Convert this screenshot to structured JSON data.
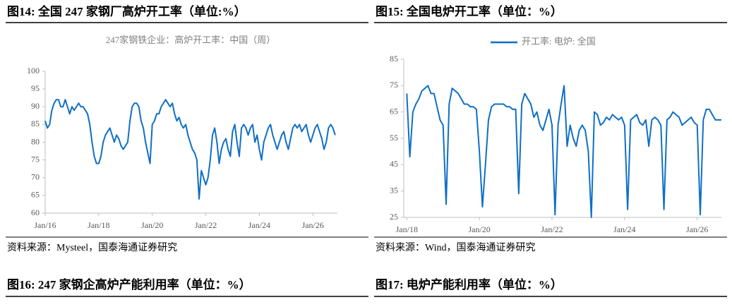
{
  "figures": [
    {
      "caption": "图14:  全国 247 家钢厂高炉开工率（单位:%）",
      "source": "资料来源：Mysteel，国泰海通证券研究"
    },
    {
      "caption": "图15:  全国电炉开工率（单位：%）",
      "source": "资料来源：Wind，国泰海通证券研究"
    }
  ],
  "next_captions": [
    "图16:  247 家钢企高炉产能利用率（单位：%）",
    "图17:  电炉产能利用率（单位：%）"
  ],
  "chart_data": [
    {
      "type": "line",
      "title": "247家钢铁企业：高炉开工率：中国（周）",
      "color": "#0f6fc6",
      "x": [
        "2016-01",
        "2016-02",
        "2016-03",
        "2016-04",
        "2016-05",
        "2016-06",
        "2016-07",
        "2016-08",
        "2016-09",
        "2016-10",
        "2016-11",
        "2016-12",
        "2017-01",
        "2017-02",
        "2017-03",
        "2017-04",
        "2017-05",
        "2017-06",
        "2017-07",
        "2017-08",
        "2017-09",
        "2017-10",
        "2017-11",
        "2017-12",
        "2018-01",
        "2018-02",
        "2018-03",
        "2018-04",
        "2018-05",
        "2018-06",
        "2018-07",
        "2018-08",
        "2018-09",
        "2018-10",
        "2018-11",
        "2018-12",
        "2019-01",
        "2019-02",
        "2019-03",
        "2019-04",
        "2019-05",
        "2019-06",
        "2019-07",
        "2019-08",
        "2019-09",
        "2019-10",
        "2019-11",
        "2019-12",
        "2020-01",
        "2020-02",
        "2020-03",
        "2020-04",
        "2020-05",
        "2020-06",
        "2020-07",
        "2020-08",
        "2020-09",
        "2020-10",
        "2020-11",
        "2020-12",
        "2021-01",
        "2021-02",
        "2021-03",
        "2021-04",
        "2021-05",
        "2021-06",
        "2021-07",
        "2021-08",
        "2021-09",
        "2021-10",
        "2021-11",
        "2021-12",
        "2022-01",
        "2022-02",
        "2022-03",
        "2022-04",
        "2022-05",
        "2022-06",
        "2022-07",
        "2022-08",
        "2022-09",
        "2022-10",
        "2022-11",
        "2022-12",
        "2023-01",
        "2023-02",
        "2023-03",
        "2023-04",
        "2023-05",
        "2023-06",
        "2023-07",
        "2023-08",
        "2023-09",
        "2023-10",
        "2023-11",
        "2023-12",
        "2024-01",
        "2024-02",
        "2024-03",
        "2024-04",
        "2024-05",
        "2024-06",
        "2024-07",
        "2024-08",
        "2024-09",
        "2024-10",
        "2024-11",
        "2024-12",
        "2025-01",
        "2025-02",
        "2025-03",
        "2025-04",
        "2025-05",
        "2025-06",
        "2025-07",
        "2025-08",
        "2025-09",
        "2025-10",
        "2025-11",
        "2025-12",
        "2026-01",
        "2026-02",
        "2026-03",
        "2026-04",
        "2026-05",
        "2026-06",
        "2026-07",
        "2026-08",
        "2026-09",
        "2026-10",
        "2026-11"
      ],
      "values": [
        86,
        84,
        85,
        89,
        91,
        92,
        92,
        90,
        90,
        92,
        90,
        88,
        90,
        89,
        90,
        91,
        90,
        90,
        89,
        88,
        85,
        80,
        76,
        74,
        74,
        76,
        80,
        82,
        83,
        84,
        82,
        80,
        82,
        81,
        79,
        78,
        79,
        80,
        86,
        90,
        91,
        91,
        90,
        86,
        84,
        80,
        77,
        74,
        85,
        86,
        88,
        88,
        90,
        91,
        92,
        91,
        90,
        91,
        88,
        86,
        87,
        85,
        84,
        85,
        82,
        80,
        78,
        77,
        75,
        64,
        72,
        70,
        68,
        70,
        75,
        82,
        84,
        80,
        74,
        78,
        80,
        81,
        78,
        76,
        83,
        85,
        80,
        76,
        84,
        85,
        84,
        82,
        84,
        85,
        80,
        82,
        78,
        75,
        80,
        82,
        84,
        85,
        82,
        80,
        78,
        80,
        82,
        83,
        80,
        78,
        81,
        84,
        85,
        84,
        85,
        83,
        84,
        85,
        82,
        80,
        82,
        84,
        85,
        83,
        81,
        78,
        80,
        84,
        85,
        84,
        82
      ],
      "xlim": [
        "2016-01",
        "2026-12"
      ],
      "xticks": [
        {
          "value": "2016-01",
          "label": "Jan/16"
        },
        {
          "value": "2018-01",
          "label": "Jan/18"
        },
        {
          "value": "2020-01",
          "label": "Jan/20"
        },
        {
          "value": "2022-01",
          "label": "Jan/22"
        },
        {
          "value": "2024-01",
          "label": "Jan/24"
        },
        {
          "value": "2026-01",
          "label": "Jan/26"
        }
      ],
      "ylim": [
        60,
        100
      ],
      "yticks": [
        60,
        65,
        70,
        75,
        80,
        85,
        90,
        95,
        100
      ]
    },
    {
      "type": "line",
      "legend": "top",
      "x": [
        "2018-01",
        "2018-02",
        "2018-03",
        "2018-04",
        "2018-05",
        "2018-06",
        "2018-07",
        "2018-08",
        "2018-09",
        "2018-10",
        "2018-11",
        "2018-12",
        "2019-01",
        "2019-02",
        "2019-03",
        "2019-04",
        "2019-05",
        "2019-06",
        "2019-07",
        "2019-08",
        "2019-09",
        "2019-10",
        "2019-11",
        "2019-12",
        "2020-01",
        "2020-02",
        "2020-03",
        "2020-04",
        "2020-05",
        "2020-06",
        "2020-07",
        "2020-08",
        "2020-09",
        "2020-10",
        "2020-11",
        "2020-12",
        "2021-01",
        "2021-02",
        "2021-03",
        "2021-04",
        "2021-05",
        "2021-06",
        "2021-07",
        "2021-08",
        "2021-09",
        "2021-10",
        "2021-11",
        "2021-12",
        "2022-01",
        "2022-02",
        "2022-03",
        "2022-04",
        "2022-05",
        "2022-06",
        "2022-07",
        "2022-08",
        "2022-09",
        "2022-10",
        "2022-11",
        "2022-12",
        "2023-01",
        "2023-02",
        "2023-03",
        "2023-04",
        "2023-05",
        "2023-06",
        "2023-07",
        "2023-08",
        "2023-09",
        "2023-10",
        "2023-11",
        "2023-12",
        "2024-01",
        "2024-02",
        "2024-03",
        "2024-04",
        "2024-05",
        "2024-06",
        "2024-07",
        "2024-08",
        "2024-09",
        "2024-10",
        "2024-11",
        "2024-12",
        "2025-01",
        "2025-02",
        "2025-03",
        "2025-04",
        "2025-05",
        "2025-06",
        "2025-07",
        "2025-08",
        "2025-09",
        "2025-10",
        "2025-11",
        "2025-12",
        "2026-01",
        "2026-02",
        "2026-03",
        "2026-04",
        "2026-05",
        "2026-06",
        "2026-07",
        "2026-08",
        "2026-09"
      ],
      "series": [
        {
          "name": "开工率: 电炉: 全国",
          "color": "#0f6fc6",
          "values": [
            72,
            48,
            65,
            68,
            70,
            73,
            74,
            75,
            72,
            72,
            67,
            62,
            60,
            30,
            68,
            74,
            73,
            72,
            70,
            68,
            68,
            67,
            67,
            66,
            50,
            29,
            45,
            62,
            67,
            68,
            68,
            68,
            68,
            67,
            67,
            66,
            66,
            34,
            68,
            72,
            70,
            68,
            63,
            65,
            60,
            58,
            62,
            66,
            60,
            26,
            60,
            68,
            75,
            52,
            60,
            55,
            52,
            58,
            60,
            58,
            50,
            25,
            65,
            64,
            60,
            61,
            63,
            62,
            64,
            63,
            62,
            63,
            60,
            28,
            62,
            63,
            64,
            61,
            60,
            62,
            52,
            62,
            63,
            62,
            60,
            28,
            62,
            63,
            65,
            64,
            63,
            60,
            61,
            62,
            63,
            61,
            60,
            26,
            62,
            66,
            66,
            64,
            62,
            62,
            62
          ]
        }
      ],
      "xlim": [
        "2017-12",
        "2026-09"
      ],
      "xticks": [
        {
          "value": "2018-01",
          "label": "Jan/18"
        },
        {
          "value": "2020-01",
          "label": "Jan/20"
        },
        {
          "value": "2022-01",
          "label": "Jan/22"
        },
        {
          "value": "2024-01",
          "label": "Jan/24"
        },
        {
          "value": "2026-01",
          "label": "Jan/26"
        }
      ],
      "ylim": [
        25,
        85
      ],
      "yticks": [
        25,
        35,
        45,
        55,
        65,
        75,
        85
      ]
    }
  ]
}
